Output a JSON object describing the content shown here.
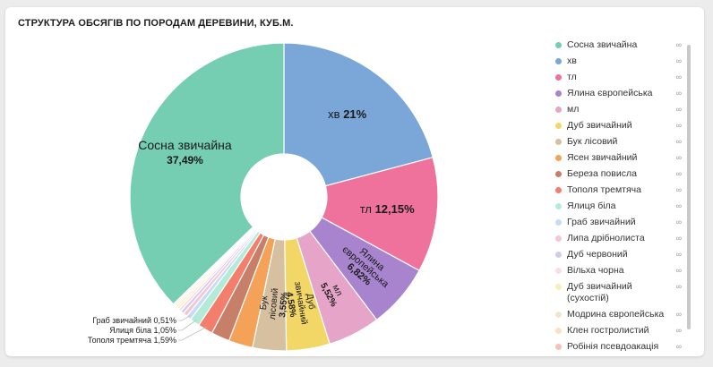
{
  "title": "СТРУКТУРА ОБСЯГІВ ПО ПОРОДАМ ДЕРЕВИНИ, КУБ.М.",
  "chart_data": {
    "type": "pie",
    "donut": true,
    "title": "СТРУКТУРА ОБСЯГІВ ПО ПОРОДАМ ДЕРЕВИНИ, КУБ.М.",
    "legend_position": "right",
    "slices": [
      {
        "name": "хв",
        "value": 21,
        "label": "хв 21%",
        "color": "#7aa6d8"
      },
      {
        "name": "тл",
        "value": 12.15,
        "label": "тл 12,15%",
        "color": "#ee729c"
      },
      {
        "name": "Ялина європейська",
        "value": 6.82,
        "label": "Ялина європейська 6,82%",
        "color": "#a884cf"
      },
      {
        "name": "мл",
        "value": 5.52,
        "label": "мл 5,52%",
        "color": "#e6a5c8"
      },
      {
        "name": "Дуб звичайний",
        "value": 4.58,
        "label": "Дуб звичайний 4,58%",
        "color": "#f3d766"
      },
      {
        "name": "Бук лісовий",
        "value": 3.55,
        "label": "Бук лісовий 3,55%",
        "color": "#d7c0a0"
      },
      {
        "name": "Ясен звичайний",
        "value": 2.55,
        "label": "",
        "color": "#f4a258"
      },
      {
        "name": "Береза повисла",
        "value": 1.95,
        "label": "",
        "color": "#c87f6a"
      },
      {
        "name": "Тополя тремтяча",
        "value": 1.59,
        "label": "Тополя тремтяча  1,59%",
        "color": "#f47e6c"
      },
      {
        "name": "Ялиця біла",
        "value": 1.05,
        "label": "Ялиця біла  1,05%",
        "color": "#b4ead8"
      },
      {
        "name": "Граб звичайний",
        "value": 0.51,
        "label": "Граб звичайний  0,51%",
        "color": "#c6dbf5"
      },
      {
        "name": "Липа дрібнолиста",
        "value": 0.45,
        "label": "",
        "color": "#f5c7d5"
      },
      {
        "name": "Дуб червоний",
        "value": 0.35,
        "label": "",
        "color": "#d6c9ee"
      },
      {
        "name": "Вільха чорна",
        "value": 0.3,
        "label": "",
        "color": "#f9dde8"
      },
      {
        "name": "Дуб звичайний (сухостій)",
        "value": 0.25,
        "label": "",
        "color": "#f7f0b4"
      },
      {
        "name": "Модрина європейська",
        "value": 0.2,
        "label": "",
        "color": "#efe6d2"
      },
      {
        "name": "Клен гостролистий",
        "value": 0.18,
        "label": "",
        "color": "#fde0c4"
      },
      {
        "name": "Робінія псевдоакація",
        "value": 0.15,
        "label": "",
        "color": "#f6c2b4"
      },
      {
        "name": "Сосна звичайна",
        "value": 37.49,
        "label": "Сосна звичайна 37,49%",
        "color": "#75cdb2"
      }
    ]
  },
  "legend": [
    {
      "name": "Сосна звичайна",
      "color": "#75cdb2"
    },
    {
      "name": "хв",
      "color": "#7aa6d8"
    },
    {
      "name": "тл",
      "color": "#ee729c"
    },
    {
      "name": "Ялина європейська",
      "color": "#a884cf"
    },
    {
      "name": "мл",
      "color": "#e6a5c8"
    },
    {
      "name": "Дуб звичайний",
      "color": "#f3d766"
    },
    {
      "name": "Бук лісовий",
      "color": "#d7c0a0"
    },
    {
      "name": "Ясен звичайний",
      "color": "#f4a258"
    },
    {
      "name": "Береза повисла",
      "color": "#c87f6a"
    },
    {
      "name": "Тополя тремтяча",
      "color": "#f47e6c"
    },
    {
      "name": "Ялиця біла",
      "color": "#b4ead8"
    },
    {
      "name": "Граб звичайний",
      "color": "#c6dbf5"
    },
    {
      "name": "Липа дрібнолиста",
      "color": "#f5c7d5"
    },
    {
      "name": "Дуб червоний",
      "color": "#d6c9ee"
    },
    {
      "name": "Вільха чорна",
      "color": "#f9dde8"
    },
    {
      "name": "Дуб звичайний (сухостій)",
      "color": "#f7f0b4"
    },
    {
      "name": "Модрина європейська",
      "color": "#efe6d2"
    },
    {
      "name": "Клен гостролистий",
      "color": "#fde0c4"
    },
    {
      "name": "Робінія псевдоакація",
      "color": "#f6c2b4"
    }
  ],
  "legend_dots": "∞"
}
